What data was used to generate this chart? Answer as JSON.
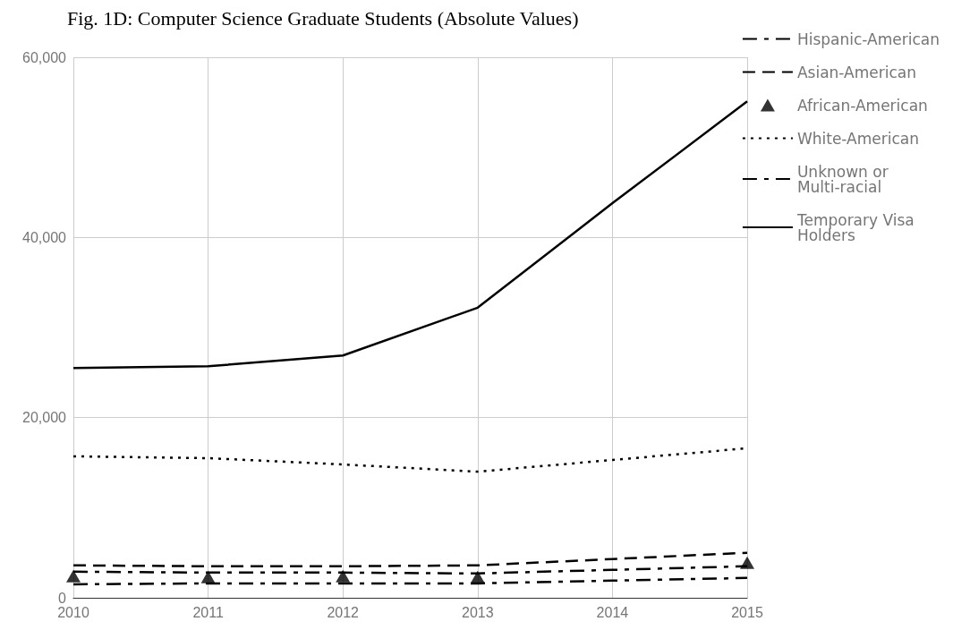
{
  "chart_data": {
    "type": "line",
    "title": "Fig. 1D: Computer Science Graduate Students (Absolute Values)",
    "categories": [
      "2010",
      "2011",
      "2012",
      "2013",
      "2014",
      "2015"
    ],
    "series": [
      {
        "name": "Hispanic-American",
        "color": "#000000",
        "line_style": "dashdot",
        "values": [
          1500,
          1600,
          1600,
          1600,
          1900,
          2200
        ]
      },
      {
        "name": "Asian-American",
        "color": "#000000",
        "line_style": "dashed",
        "values": [
          3600,
          3500,
          3500,
          3600,
          4300,
          5000
        ]
      },
      {
        "name": "African-American",
        "type": "scatter",
        "marker": "triangle",
        "color": "#000000",
        "values": [
          2400,
          2300,
          2400,
          2300,
          null,
          3900
        ]
      },
      {
        "name": "White-American",
        "color": "#000000",
        "line_style": "dotted",
        "values": [
          15700,
          15500,
          14800,
          14000,
          15300,
          16600
        ]
      },
      {
        "name": "Unknown or\nMulti-racial",
        "color": "#000000",
        "line_style": "dashdot",
        "values": [
          2900,
          2800,
          2800,
          2700,
          3100,
          3500
        ]
      },
      {
        "name": "Temporary Visa\nHolders",
        "color": "#000000",
        "line_style": "solid",
        "values": [
          25500,
          25700,
          26900,
          32200,
          43800,
          55100
        ]
      }
    ],
    "ylim": [
      0,
      60000
    ],
    "yticks": [
      0,
      {
        "value": 20000,
        "label": "20,000"
      },
      {
        "value": 40000,
        "label": "40,000"
      },
      {
        "value": 60000,
        "label": "60,000"
      }
    ],
    "grid": true,
    "legend": "top right",
    "marker": "none"
  }
}
